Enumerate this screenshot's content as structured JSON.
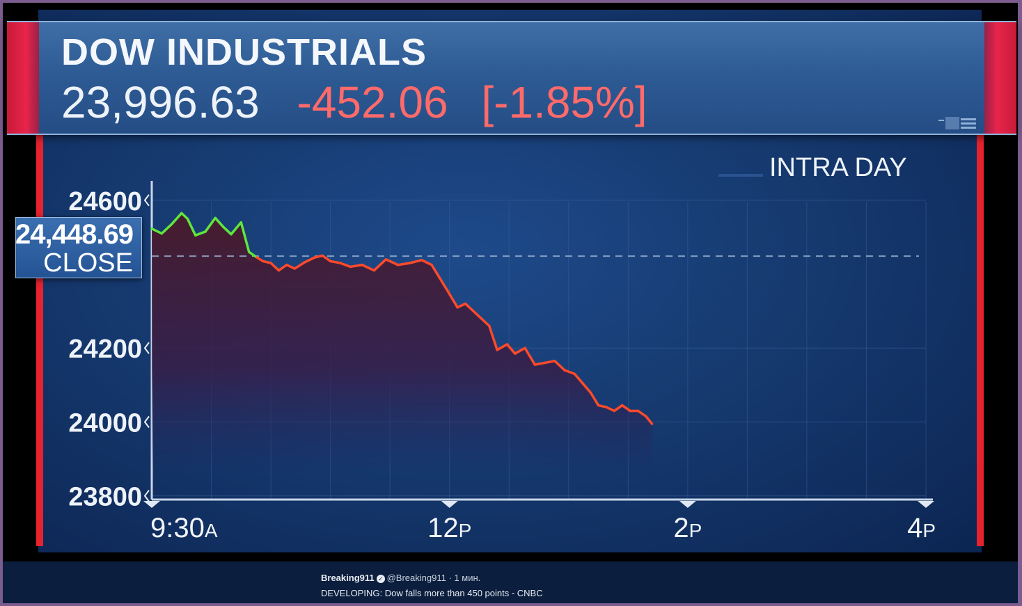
{
  "header": {
    "title": "DOW INDUSTRIALS",
    "price": "23,996.63",
    "change": "-452.06",
    "change_pct": "[-1.85%]"
  },
  "chart_label": "INTRA DAY",
  "close_marker": {
    "value": "24,448.69",
    "label": "CLOSE"
  },
  "tweet": {
    "name": "Breaking911",
    "handle": "@Breaking911",
    "time": "· 1 мин.",
    "text": "DEVELOPING: Dow falls more than 450 points - CNBC"
  },
  "colors": {
    "up": "#5fe63c",
    "down": "#ff4a2a",
    "brand_red": "#e5222e",
    "panel_blue": "#163a70"
  },
  "chart_data": {
    "type": "line",
    "title": "DOW INDUSTRIALS",
    "yticks": [
      24600,
      24200,
      24000,
      23800
    ],
    "xticks": [
      {
        "label": "9:30",
        "suffix": "A",
        "minutes": 0
      },
      {
        "label": "12",
        "suffix": "P",
        "minutes": 150
      },
      {
        "label": "2",
        "suffix": "P",
        "minutes": 270
      },
      {
        "label": "4",
        "suffix": "P",
        "minutes": 390
      }
    ],
    "ylim": [
      23790,
      24690
    ],
    "xlim_minutes": [
      0,
      390
    ],
    "previous_close": 24448.69,
    "series": [
      {
        "points": [
          [
            0,
            24523
          ],
          [
            5,
            24510
          ],
          [
            10,
            24535
          ],
          [
            15,
            24565
          ],
          [
            18,
            24550
          ],
          [
            22,
            24505
          ],
          [
            27,
            24515
          ],
          [
            32,
            24552
          ],
          [
            36,
            24528
          ],
          [
            40,
            24508
          ],
          [
            45,
            24540
          ],
          [
            49,
            24460
          ],
          [
            53,
            24445
          ],
          [
            56,
            24435
          ],
          [
            60,
            24430
          ],
          [
            64,
            24410
          ],
          [
            68,
            24425
          ],
          [
            72,
            24415
          ],
          [
            77,
            24432
          ],
          [
            82,
            24445
          ],
          [
            86,
            24450
          ],
          [
            90,
            24435
          ],
          [
            95,
            24430
          ],
          [
            100,
            24420
          ],
          [
            106,
            24425
          ],
          [
            112,
            24410
          ],
          [
            118,
            24440
          ],
          [
            124,
            24425
          ],
          [
            130,
            24430
          ],
          [
            136,
            24438
          ],
          [
            141,
            24425
          ],
          [
            145,
            24390
          ],
          [
            149,
            24355
          ],
          [
            154,
            24310
          ],
          [
            158,
            24320
          ],
          [
            162,
            24300
          ],
          [
            166,
            24280
          ],
          [
            170,
            24260
          ],
          [
            174,
            24195
          ],
          [
            179,
            24210
          ],
          [
            183,
            24185
          ],
          [
            188,
            24200
          ],
          [
            193,
            24155
          ],
          [
            198,
            24160
          ],
          [
            203,
            24165
          ],
          [
            208,
            24140
          ],
          [
            213,
            24130
          ],
          [
            217,
            24105
          ],
          [
            221,
            24080
          ],
          [
            225,
            24045
          ],
          [
            229,
            24040
          ],
          [
            233,
            24030
          ],
          [
            237,
            24045
          ],
          [
            241,
            24030
          ],
          [
            245,
            24030
          ],
          [
            249,
            24015
          ],
          [
            252,
            23995
          ]
        ]
      }
    ]
  }
}
